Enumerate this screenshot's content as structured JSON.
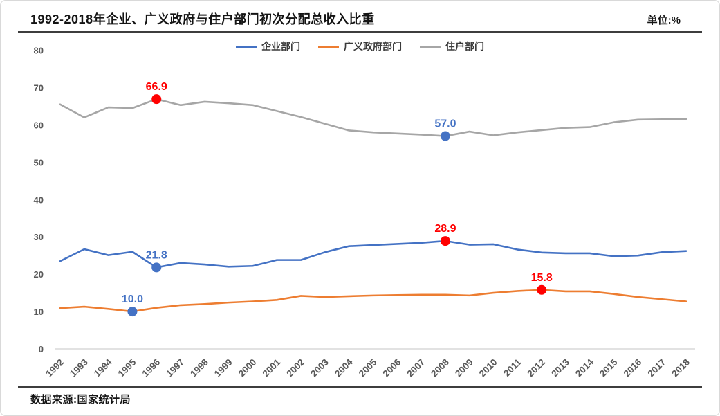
{
  "header": {
    "title": "1992-2018年企业、广义政府与住户部门初次分配总收入比重",
    "unit_label": "单位:%"
  },
  "footer": {
    "source": "数据来源:国家统计局"
  },
  "colors": {
    "enterprise_blue": "#4472C4",
    "government_orange": "#ED7D31",
    "household_gray": "#A6A6A6",
    "highlight_red": "#FF0000",
    "axis_text": "#595959",
    "rule_dark": "#3d3d3d",
    "baseline_gray": "#D9D9D9"
  },
  "chart_data": {
    "type": "line",
    "title": "1992-2018年企业、广义政府与住户部门初次分配总收入比重",
    "unit": "%",
    "x": [
      1992,
      1993,
      1994,
      1995,
      1996,
      1997,
      1998,
      1999,
      2000,
      2001,
      2002,
      2003,
      2004,
      2005,
      2006,
      2007,
      2008,
      2009,
      2010,
      2011,
      2012,
      2013,
      2014,
      2015,
      2016,
      2017,
      2018
    ],
    "ylim": [
      0,
      80
    ],
    "yticks": [
      0,
      10,
      20,
      30,
      40,
      50,
      60,
      70,
      80
    ],
    "gridlines": "none-except-zero-baseline",
    "legend_position": "top-center",
    "series": [
      {
        "key": "enterprise",
        "name": "企业部门",
        "color": "#4472C4",
        "values": [
          23.5,
          26.7,
          25.1,
          26.0,
          21.8,
          23.0,
          22.6,
          22.0,
          22.2,
          23.8,
          23.8,
          25.9,
          27.5,
          27.8,
          28.1,
          28.4,
          28.9,
          27.9,
          28.0,
          26.6,
          25.8,
          25.6,
          25.6,
          24.8,
          25.0,
          25.9,
          26.2
        ]
      },
      {
        "key": "government",
        "name": "广义政府部门",
        "color": "#ED7D31",
        "values": [
          10.9,
          11.3,
          10.7,
          10.0,
          11.0,
          11.7,
          12.0,
          12.4,
          12.7,
          13.1,
          14.2,
          13.9,
          14.1,
          14.3,
          14.4,
          14.5,
          14.5,
          14.3,
          15.0,
          15.5,
          15.8,
          15.4,
          15.4,
          14.7,
          13.9,
          13.3,
          12.7
        ]
      },
      {
        "key": "household",
        "name": "住户部门",
        "color": "#A6A6A6",
        "values": [
          65.5,
          62.0,
          64.7,
          64.5,
          66.9,
          65.3,
          66.2,
          65.8,
          65.3,
          63.7,
          62.1,
          60.3,
          58.5,
          58.0,
          57.7,
          57.4,
          57.0,
          58.2,
          57.2,
          58.0,
          58.6,
          59.2,
          59.4,
          60.7,
          61.4,
          61.5,
          61.6
        ]
      }
    ],
    "annotations": [
      {
        "series": "household",
        "year": 1996,
        "value": 66.9,
        "label": "66.9",
        "color": "#FF0000"
      },
      {
        "series": "household",
        "year": 2008,
        "value": 57.0,
        "label": "57.0",
        "color": "#4472C4"
      },
      {
        "series": "enterprise",
        "year": 1996,
        "value": 21.8,
        "label": "21.8",
        "color": "#4472C4"
      },
      {
        "series": "enterprise",
        "year": 2008,
        "value": 28.9,
        "label": "28.9",
        "color": "#FF0000"
      },
      {
        "series": "government",
        "year": 1995,
        "value": 10.0,
        "label": "10.0",
        "color": "#4472C4"
      },
      {
        "series": "government",
        "year": 2012,
        "value": 15.8,
        "label": "15.8",
        "color": "#FF0000"
      }
    ]
  }
}
